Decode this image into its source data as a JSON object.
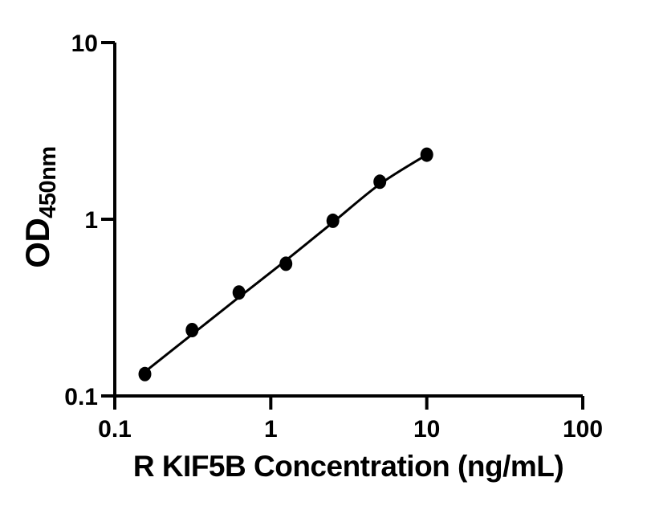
{
  "figure": {
    "background_color": "#ffffff",
    "ink_color": "#000000"
  },
  "chart_data": {
    "type": "scatter",
    "title": "",
    "xlabel": "R KIF5B Concentration (ng/mL)",
    "ylabel": "OD450nm",
    "ylabel_main": "OD",
    "ylabel_sub": "450nm",
    "x_scale": "log",
    "y_scale": "log",
    "xlim": [
      0.1,
      100
    ],
    "ylim": [
      0.1,
      10
    ],
    "grid": false,
    "legend": false,
    "x_ticks": [
      {
        "value": 0.1,
        "label": "0.1"
      },
      {
        "value": 1,
        "label": "1"
      },
      {
        "value": 10,
        "label": "10"
      },
      {
        "value": 100,
        "label": "100"
      }
    ],
    "y_ticks": [
      {
        "value": 0.1,
        "label": "0.1"
      },
      {
        "value": 1,
        "label": "1"
      },
      {
        "value": 10,
        "label": "10"
      }
    ],
    "marker": {
      "shape": "filled-circle",
      "color": "#000000"
    },
    "points": [
      {
        "x": 0.156,
        "y": 0.133
      },
      {
        "x": 0.313,
        "y": 0.236
      },
      {
        "x": 0.625,
        "y": 0.385
      },
      {
        "x": 1.25,
        "y": 0.56
      },
      {
        "x": 2.5,
        "y": 0.98
      },
      {
        "x": 5,
        "y": 1.63
      },
      {
        "x": 10,
        "y": 2.32
      }
    ],
    "fit_curve": {
      "color": "#000000",
      "points": [
        {
          "x": 0.156,
          "y": 0.137
        },
        {
          "x": 0.3125,
          "y": 0.223
        },
        {
          "x": 0.625,
          "y": 0.362
        },
        {
          "x": 1.25,
          "y": 0.585
        },
        {
          "x": 2.5,
          "y": 0.96
        },
        {
          "x": 5,
          "y": 1.58
        },
        {
          "x": 10,
          "y": 2.32
        }
      ]
    }
  }
}
